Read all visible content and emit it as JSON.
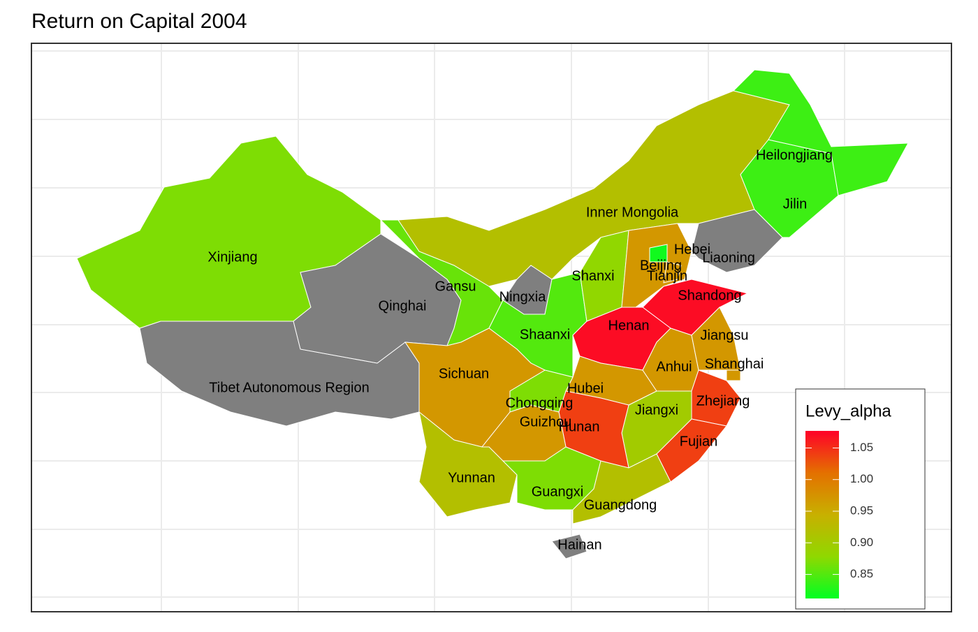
{
  "chart_data": {
    "type": "choropleth",
    "title": "Return on Capital 2004",
    "legend": {
      "title": "Levy_alpha",
      "lim": [
        0.812,
        1.077
      ],
      "ticks": [
        0.85,
        {
          "value": 0.9,
          "label": "0.90"
        },
        0.95,
        {
          "value": 1,
          "label": "1.00"
        },
        1.05
      ],
      "colors": [
        "#00ff22",
        "#90d800",
        "#c8b000",
        "#e47000",
        "#ff0028"
      ]
    },
    "na_color": "#7f7f7f",
    "regions": [
      {
        "name": "Xinjiang",
        "value": 0.87
      },
      {
        "name": "Tibet Autonomous Region",
        "value": null
      },
      {
        "name": "Qinghai",
        "value": null
      },
      {
        "name": "Gansu",
        "value": 0.86
      },
      {
        "name": "Inner Mongolia",
        "value": 0.92
      },
      {
        "name": "Ningxia",
        "value": null
      },
      {
        "name": "Shaanxi",
        "value": 0.85
      },
      {
        "name": "Shanxi",
        "value": 0.88
      },
      {
        "name": "Hebei",
        "value": 0.97
      },
      {
        "name": "Beijing",
        "value": 0.82
      },
      {
        "name": "Tianjin",
        "value": 0.97
      },
      {
        "name": "Liaoning",
        "value": null
      },
      {
        "name": "Jilin",
        "value": 0.84
      },
      {
        "name": "Heilongjiang",
        "value": 0.84
      },
      {
        "name": "Shandong",
        "value": 1.07
      },
      {
        "name": "Henan",
        "value": 1.07
      },
      {
        "name": "Hubei",
        "value": 0.97
      },
      {
        "name": "Anhui",
        "value": 0.97
      },
      {
        "name": "Jiangsu",
        "value": 0.97
      },
      {
        "name": "Shanghai",
        "value": 0.97
      },
      {
        "name": "Zhejiang",
        "value": 1.04
      },
      {
        "name": "Fujian",
        "value": 1.04
      },
      {
        "name": "Jiangxi",
        "value": 0.9
      },
      {
        "name": "Hunan",
        "value": 1.04
      },
      {
        "name": "Chongqing",
        "value": 0.87
      },
      {
        "name": "Sichuan",
        "value": 0.97
      },
      {
        "name": "Guizhou",
        "value": 0.97
      },
      {
        "name": "Yunnan",
        "value": 0.92
      },
      {
        "name": "Guangxi",
        "value": 0.87
      },
      {
        "name": "Guangdong",
        "value": 0.92
      },
      {
        "name": "Hainan",
        "value": null
      }
    ]
  }
}
